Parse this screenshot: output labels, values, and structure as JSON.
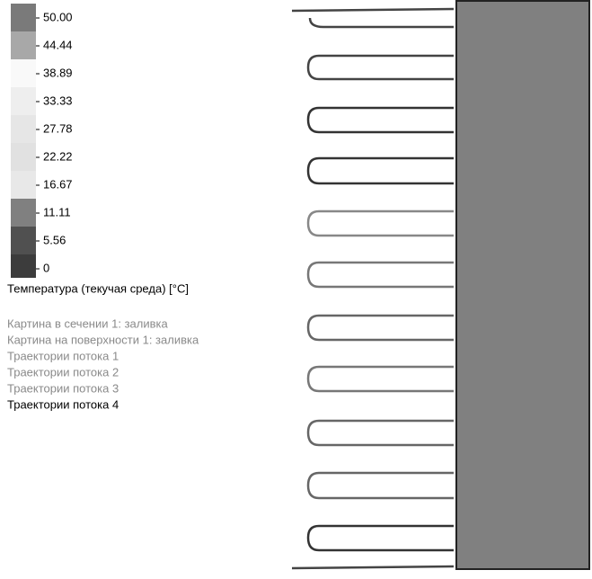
{
  "legend": {
    "ticks": [
      "50.00",
      "44.44",
      "38.89",
      "33.33",
      "27.78",
      "22.22",
      "16.67",
      "11.11",
      "5.56",
      "0"
    ],
    "title": "Температура (текучая среда) [°C]"
  },
  "items": [
    "Картина в сечении 1: заливка",
    "Картина на поверхности 1: заливка",
    "Траектории потока 1",
    "Траектории потока 2",
    "Траектории потока 3",
    "Траектории потока 4"
  ]
}
